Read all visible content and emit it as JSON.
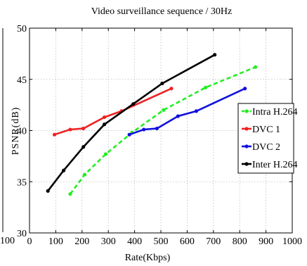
{
  "left_panel_fragment": {
    "tick_label": "100"
  },
  "chart_data": {
    "type": "line",
    "title": "Video surveillance sequence / 30Hz",
    "xlabel": "Rate(Kbps)",
    "ylabel": "PSNR(dB)",
    "xlim": [
      0,
      1000
    ],
    "ylim": [
      30,
      50
    ],
    "x_ticks": [
      0,
      100,
      200,
      300,
      400,
      500,
      600,
      700,
      800,
      900,
      1000
    ],
    "y_ticks": [
      30,
      35,
      40,
      45,
      50
    ],
    "x_tick_labels": [
      "0",
      "100",
      "200",
      "300",
      "400",
      "500",
      "600",
      "700",
      "800",
      "900",
      "1000"
    ],
    "y_tick_labels": [
      "30",
      "35",
      "40",
      "45",
      "50"
    ],
    "grid": true,
    "legend_position": "right",
    "series": [
      {
        "name": "Intra H.264",
        "color": "#22ee22",
        "dashed": true,
        "marker": "dot",
        "points": [
          [
            155,
            33.8
          ],
          [
            210,
            35.7
          ],
          [
            290,
            37.7
          ],
          [
            390,
            39.8
          ],
          [
            510,
            42.0
          ],
          [
            670,
            44.2
          ],
          [
            860,
            46.2
          ]
        ]
      },
      {
        "name": "DVC 1",
        "color": "#ee2222",
        "dashed": false,
        "marker": "dot",
        "points": [
          [
            95,
            39.6
          ],
          [
            155,
            40.1
          ],
          [
            205,
            40.2
          ],
          [
            285,
            41.3
          ],
          [
            350,
            41.9
          ],
          [
            540,
            44.1
          ]
        ]
      },
      {
        "name": "DVC 2",
        "color": "#1111dd",
        "dashed": false,
        "marker": "dot",
        "points": [
          [
            380,
            39.6
          ],
          [
            435,
            40.1
          ],
          [
            485,
            40.2
          ],
          [
            565,
            41.4
          ],
          [
            635,
            41.9
          ],
          [
            820,
            44.1
          ]
        ]
      },
      {
        "name": "Inter H.264",
        "color": "#000000",
        "dashed": false,
        "marker": "dot",
        "points": [
          [
            70,
            34.1
          ],
          [
            130,
            36.1
          ],
          [
            205,
            38.4
          ],
          [
            285,
            40.6
          ],
          [
            395,
            42.6
          ],
          [
            505,
            44.6
          ],
          [
            705,
            47.4
          ]
        ]
      }
    ]
  }
}
